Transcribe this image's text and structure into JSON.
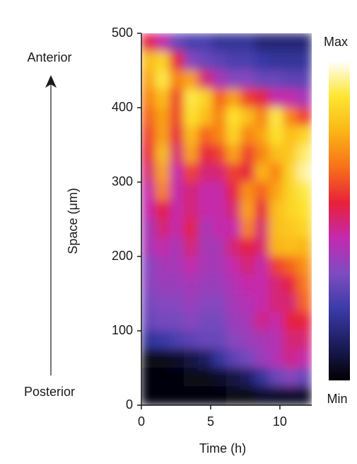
{
  "chart_data": {
    "type": "heatmap",
    "xlabel": "Time (h)",
    "ylabel": "Space (μm)",
    "top_label": "Anterior",
    "bottom_label": "Posterior",
    "colorbar_max_label": "Max",
    "colorbar_min_label": "Min",
    "xlim": [
      0,
      12.3
    ],
    "ylim": [
      0,
      500
    ],
    "xticks": [
      0,
      5,
      10
    ],
    "yticks": [
      0,
      100,
      200,
      300,
      400,
      500
    ],
    "colormap": [
      "#000000",
      "#1c1c5c",
      "#3a3aa8",
      "#7d4cc0",
      "#c22ab0",
      "#e8203a",
      "#f7701a",
      "#fbb416",
      "#fde631",
      "#ffffff"
    ],
    "x_edges": [
      0,
      1.025,
      2.05,
      3.075,
      4.1,
      5.125,
      6.15,
      7.175,
      8.2,
      9.225,
      10.25,
      11.275,
      12.3
    ],
    "y_edges": [
      500,
      475,
      450,
      425,
      400,
      375,
      350,
      325,
      300,
      275,
      250,
      225,
      200,
      175,
      150,
      125,
      100,
      75,
      50,
      25,
      0
    ],
    "z": [
      [
        0.55,
        0.45,
        0.3,
        0.25,
        0.25,
        0.2,
        0.2,
        0.2,
        0.15,
        0.15,
        0.15,
        0.15
      ],
      [
        0.8,
        0.85,
        0.55,
        0.35,
        0.3,
        0.28,
        0.25,
        0.25,
        0.22,
        0.2,
        0.2,
        0.2
      ],
      [
        0.75,
        0.9,
        0.7,
        0.75,
        0.5,
        0.4,
        0.35,
        0.35,
        0.3,
        0.3,
        0.28,
        0.28
      ],
      [
        0.7,
        0.8,
        0.6,
        0.9,
        0.85,
        0.65,
        0.75,
        0.6,
        0.55,
        0.45,
        0.45,
        0.4
      ],
      [
        0.65,
        0.75,
        0.6,
        0.88,
        0.8,
        0.7,
        0.88,
        0.8,
        0.7,
        0.9,
        0.7,
        0.6
      ],
      [
        0.6,
        0.75,
        0.55,
        0.8,
        0.65,
        0.7,
        0.85,
        0.7,
        0.75,
        0.88,
        0.8,
        0.85
      ],
      [
        0.55,
        0.8,
        0.5,
        0.75,
        0.55,
        0.6,
        0.75,
        0.6,
        0.7,
        0.8,
        0.82,
        0.92
      ],
      [
        0.5,
        0.75,
        0.45,
        0.6,
        0.5,
        0.5,
        0.6,
        0.55,
        0.78,
        0.7,
        0.85,
        0.95
      ],
      [
        0.45,
        0.7,
        0.45,
        0.5,
        0.45,
        0.45,
        0.55,
        0.72,
        0.65,
        0.75,
        0.85,
        0.9
      ],
      [
        0.45,
        0.55,
        0.45,
        0.5,
        0.45,
        0.45,
        0.5,
        0.75,
        0.55,
        0.8,
        0.85,
        0.88
      ],
      [
        0.4,
        0.5,
        0.45,
        0.55,
        0.4,
        0.45,
        0.45,
        0.7,
        0.5,
        0.8,
        0.82,
        0.85
      ],
      [
        0.4,
        0.45,
        0.4,
        0.5,
        0.4,
        0.4,
        0.5,
        0.55,
        0.5,
        0.78,
        0.8,
        0.78
      ],
      [
        0.35,
        0.4,
        0.4,
        0.45,
        0.4,
        0.4,
        0.45,
        0.5,
        0.45,
        0.6,
        0.65,
        0.72
      ],
      [
        0.35,
        0.38,
        0.38,
        0.4,
        0.38,
        0.38,
        0.42,
        0.45,
        0.45,
        0.5,
        0.55,
        0.68
      ],
      [
        0.32,
        0.35,
        0.35,
        0.38,
        0.35,
        0.35,
        0.4,
        0.42,
        0.45,
        0.5,
        0.5,
        0.65
      ],
      [
        0.3,
        0.32,
        0.32,
        0.35,
        0.32,
        0.32,
        0.38,
        0.4,
        0.48,
        0.45,
        0.55,
        0.55
      ],
      [
        0.2,
        0.22,
        0.25,
        0.28,
        0.3,
        0.3,
        0.35,
        0.38,
        0.4,
        0.42,
        0.5,
        0.5
      ],
      [
        0.03,
        0.03,
        0.05,
        0.08,
        0.12,
        0.2,
        0.28,
        0.32,
        0.38,
        0.42,
        0.48,
        0.45
      ],
      [
        0.02,
        0.02,
        0.02,
        0.03,
        0.03,
        0.05,
        0.08,
        0.12,
        0.2,
        0.3,
        0.35,
        0.3
      ],
      [
        0.02,
        0.02,
        0.02,
        0.02,
        0.02,
        0.02,
        0.03,
        0.03,
        0.05,
        0.05,
        0.05,
        0.05
      ]
    ]
  }
}
